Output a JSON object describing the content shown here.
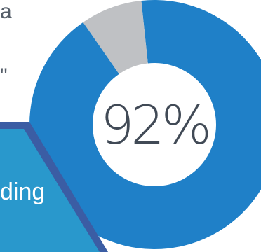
{
  "fragments": {
    "top": "a",
    "quote": "\""
  },
  "ribbon": {
    "text": "ding"
  },
  "chart_data": {
    "type": "pie",
    "variant": "donut",
    "center_label": "92%",
    "values": [
      92,
      8
    ],
    "colors": {
      "filled": "#1f80c8",
      "remaining": "#bfc1c4",
      "ribbon": "#2998cc",
      "ribbon_border": "#3b5da4",
      "text": "#414a56"
    }
  }
}
